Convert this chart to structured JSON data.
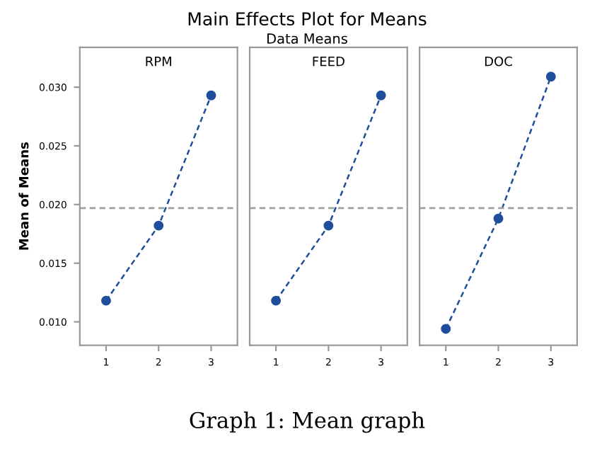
{
  "chart_data": [
    {
      "type": "line",
      "title": "RPM",
      "ylabel": "Mean of Means",
      "categories": [
        "1",
        "2",
        "3"
      ],
      "series": [
        {
          "color": "#1f4e9c",
          "values": [
            0.0118,
            0.0182,
            0.0293
          ]
        }
      ],
      "ylim": [
        0.008,
        0.0334
      ],
      "yticks": [
        {
          "value": 0.01,
          "label": "0.010"
        },
        0.015,
        {
          "value": 0.02,
          "label": "0.020"
        },
        0.025,
        {
          "value": 0.03,
          "label": "0.030"
        }
      ],
      "marker": "circle",
      "line_style": "dashed",
      "grid": false,
      "ref_lines": [
        {
          "axis": "y",
          "value": 0.0197,
          "color": "#a0a0a0",
          "line_style": "dashed"
        }
      ],
      "annotations": [
        "Main Effects Plot for Means",
        "Data Means",
        "Graph 1: Mean graph"
      ]
    },
    {
      "type": "line",
      "title": "FEED",
      "categories": [
        "1",
        "2",
        "3"
      ],
      "series": [
        {
          "color": "#1f4e9c",
          "values": [
            0.0118,
            0.0182,
            0.0293
          ]
        }
      ],
      "ylim": [
        0.008,
        0.0334
      ],
      "marker": "circle",
      "line_style": "dashed",
      "grid": false,
      "tick_labels": "x",
      "ref_lines": [
        {
          "axis": "y",
          "value": 0.0197,
          "color": "#a0a0a0",
          "line_style": "dashed"
        }
      ]
    },
    {
      "type": "line",
      "title": "DOC",
      "categories": [
        "1",
        "2",
        "3"
      ],
      "series": [
        {
          "color": "#1f4e9c",
          "values": [
            0.0094,
            0.0188,
            0.0309
          ]
        }
      ],
      "ylim": [
        0.008,
        0.0334
      ],
      "marker": "circle",
      "line_style": "dashed",
      "grid": false,
      "tick_labels": "x",
      "ref_lines": [
        {
          "axis": "y",
          "value": 0.0197,
          "color": "#a0a0a0",
          "line_style": "dashed"
        }
      ]
    }
  ]
}
